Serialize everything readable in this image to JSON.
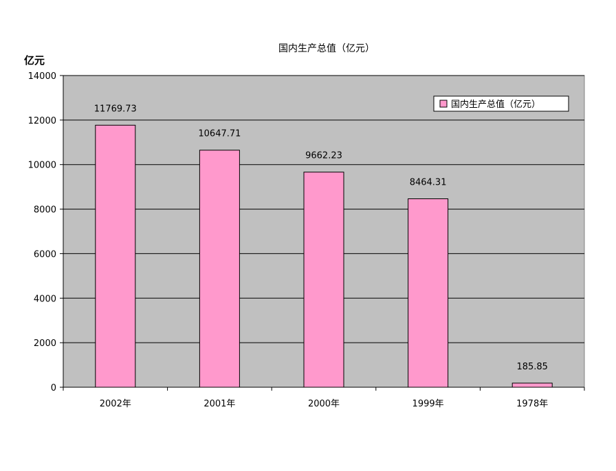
{
  "chart_data": {
    "type": "bar",
    "title": "国内生产总值（亿元）",
    "ylabel": "亿元",
    "xlabel": "",
    "categories": [
      "2002年",
      "2001年",
      "2000年",
      "1999年",
      "1978年"
    ],
    "series": [
      {
        "name": "国内生产总值（亿元）",
        "values": [
          11769.73,
          10647.71,
          9662.23,
          8464.31,
          185.85
        ],
        "labels": [
          "11769.73",
          "10647.71",
          "9662.23",
          "8464.31",
          "185.85"
        ]
      }
    ],
    "ylim": [
      0,
      14000
    ],
    "yticks": [
      0,
      2000,
      4000,
      6000,
      8000,
      10000,
      12000,
      14000
    ],
    "grid": true,
    "legend": "top-right",
    "colors": {
      "bar": "#ff99cc",
      "plot_background": "#c0c0c0",
      "gridline": "#000000"
    }
  }
}
